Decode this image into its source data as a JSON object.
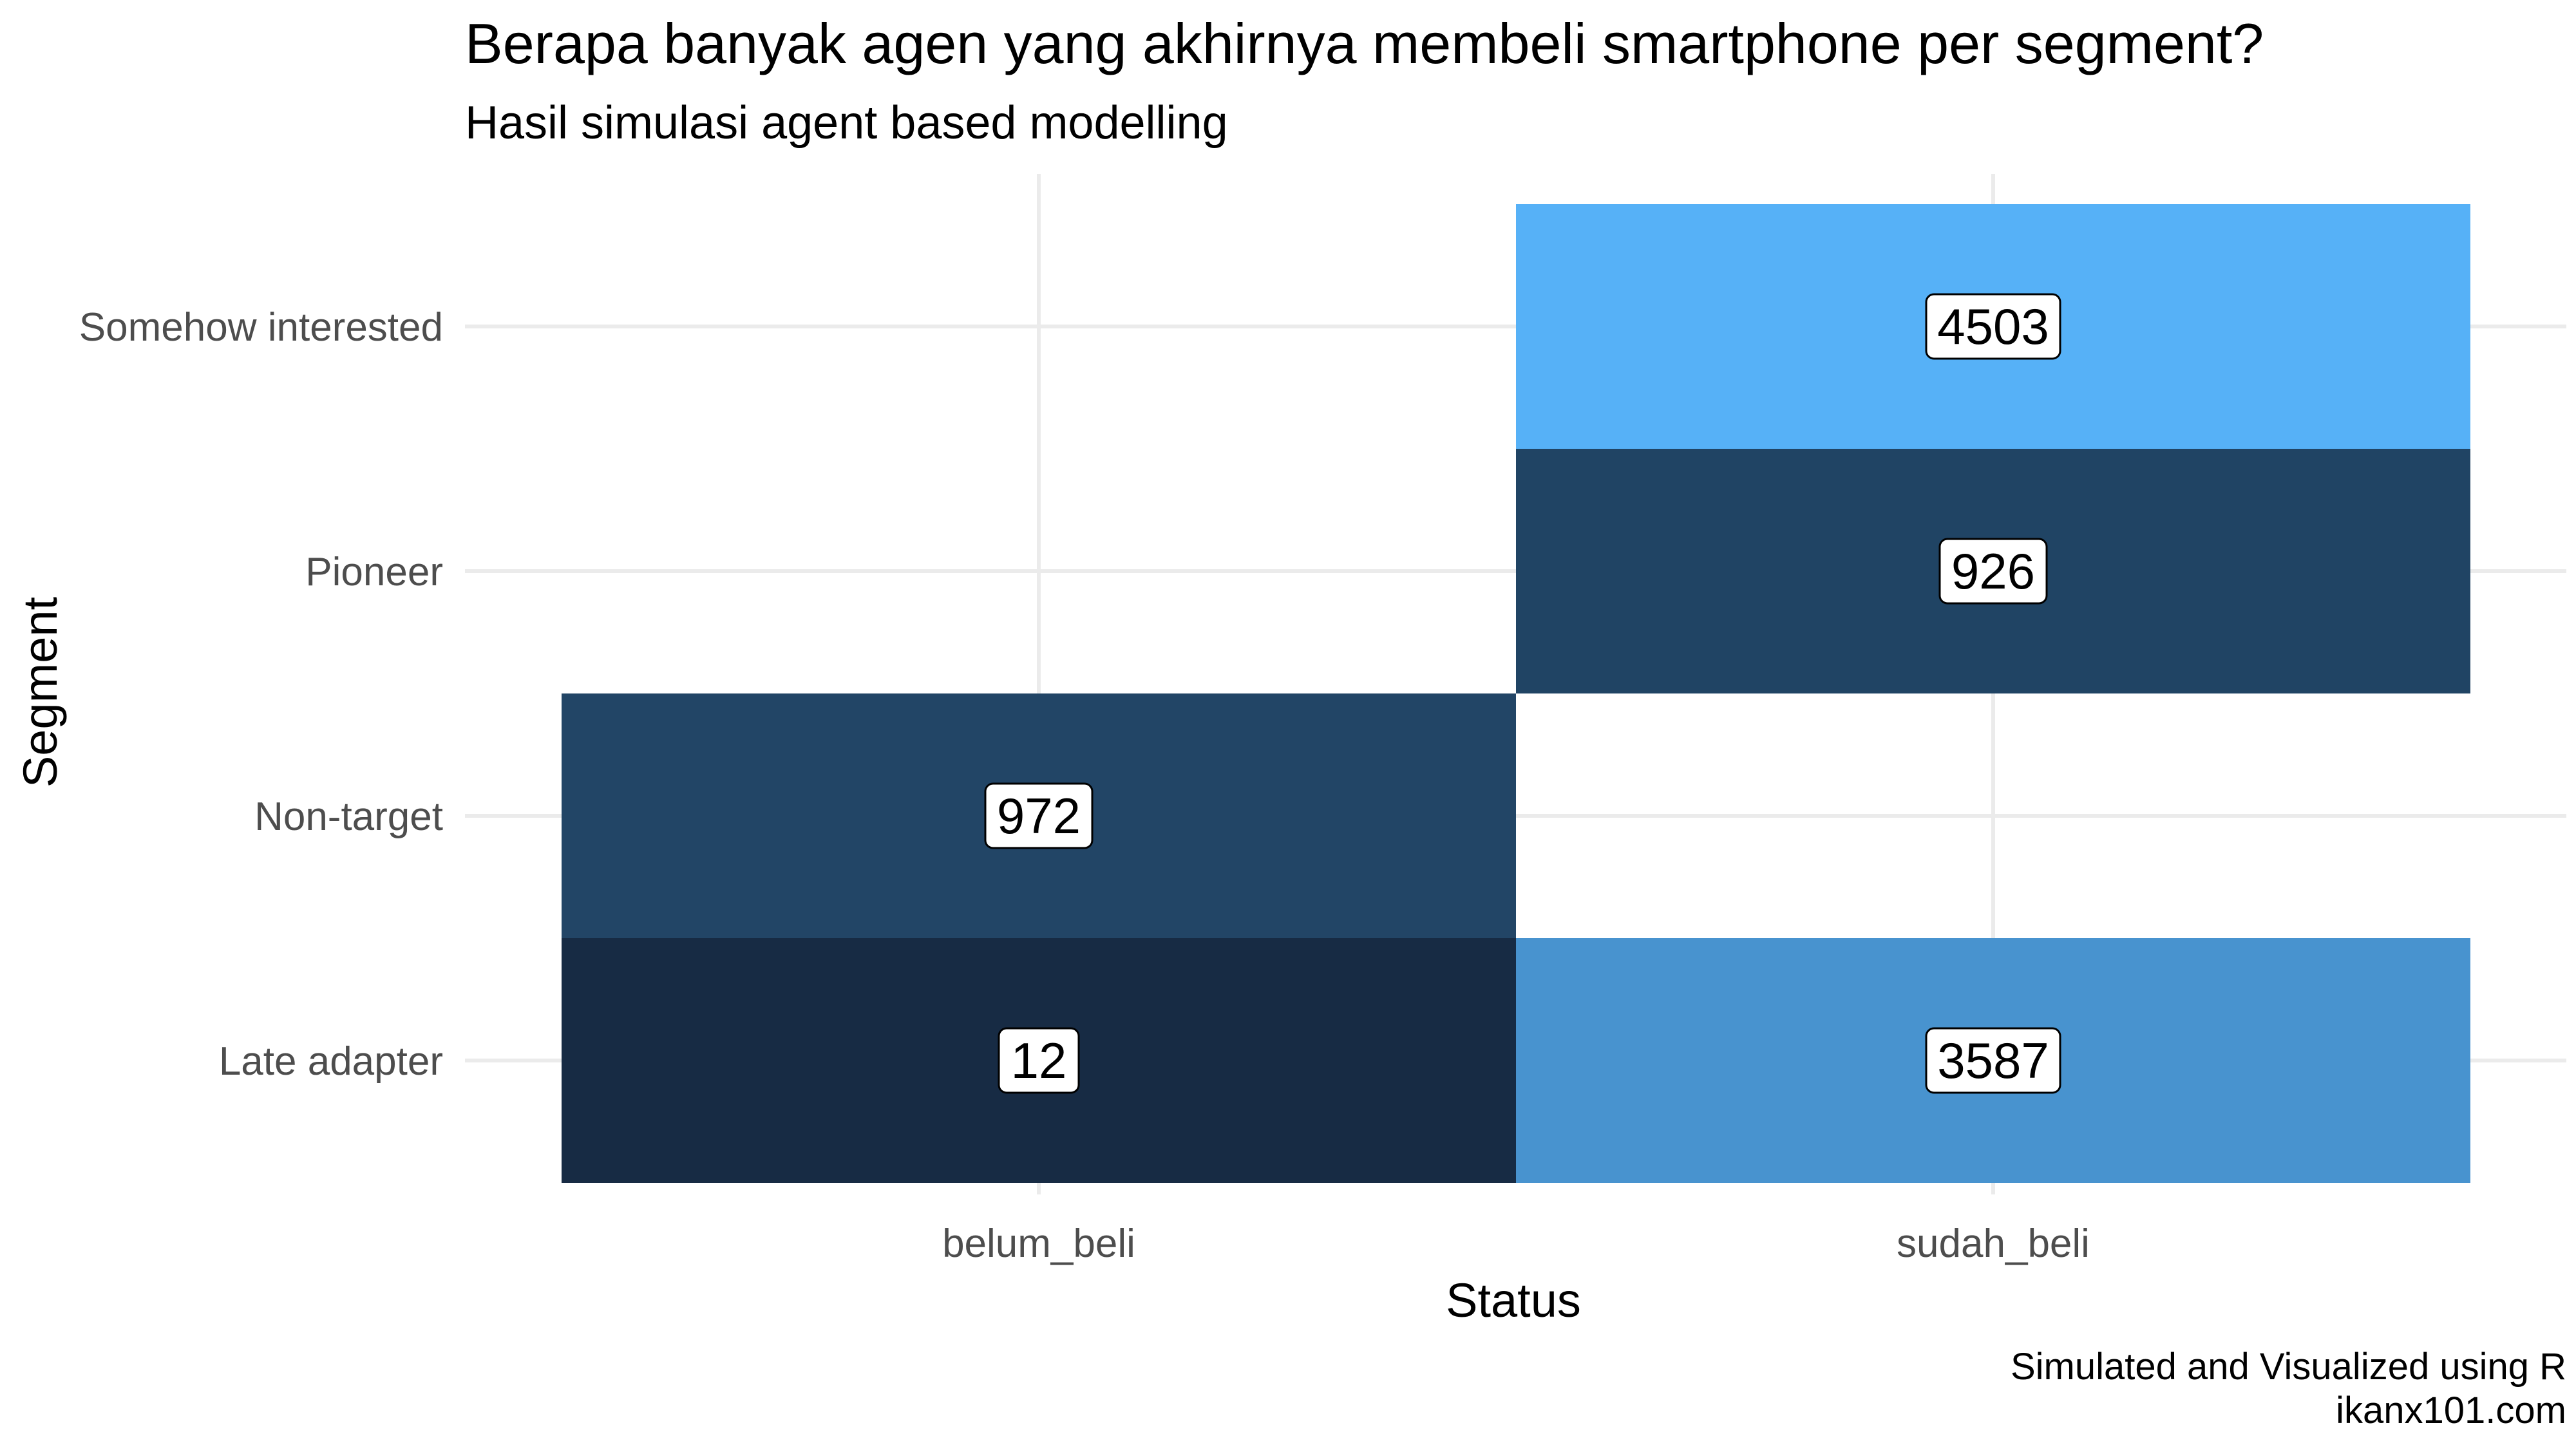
{
  "chart_data": {
    "type": "heatmap",
    "title": "Berapa banyak agen yang akhirnya membeli smartphone per segment?",
    "subtitle": "Hasil simulasi agent based modelling",
    "xlabel": "Status",
    "ylabel": "Segment",
    "x_categories": [
      "belum_beli",
      "sudah_beli"
    ],
    "y_categories": [
      "Late adapter",
      "Non-target",
      "Pioneer",
      "Somehow interested"
    ],
    "cells": [
      {
        "x": "belum_beli",
        "y": "Late adapter",
        "value": 12,
        "color": "#172b44"
      },
      {
        "x": "belum_beli",
        "y": "Non-target",
        "value": 972,
        "color": "#224566"
      },
      {
        "x": "sudah_beli",
        "y": "Late adapter",
        "value": 3587,
        "color": "#4893cf"
      },
      {
        "x": "sudah_beli",
        "y": "Pioneer",
        "value": 926,
        "color": "#204464"
      },
      {
        "x": "sudah_beli",
        "y": "Somehow interested",
        "value": 4503,
        "color": "#56b1f7"
      }
    ],
    "grid": true,
    "legend": "none"
  },
  "caption": {
    "line1": "Simulated and Visualized using R",
    "line2": "ikanx101.com"
  },
  "colors": {
    "background": "#ffffff",
    "gridline": "#ebebeb",
    "axis_text": "#4d4d4d",
    "title_text": "#000000",
    "label_fill": "#ffffff",
    "label_border": "#000000"
  }
}
